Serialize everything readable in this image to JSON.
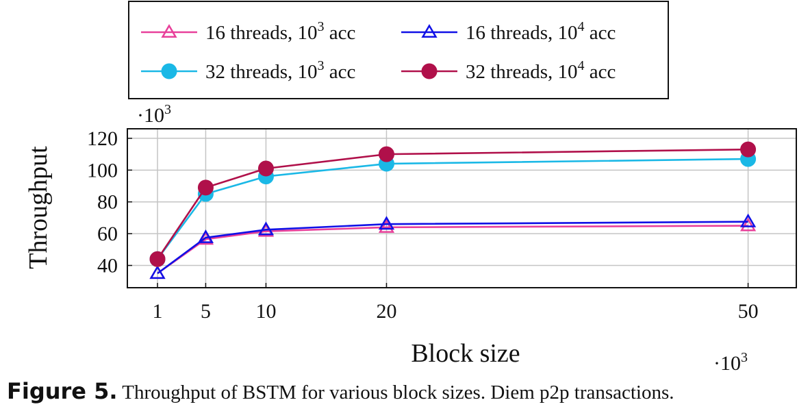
{
  "chart_data": {
    "type": "line",
    "x": [
      1,
      5,
      10,
      20,
      50
    ],
    "x_tick_labels": [
      "1",
      "5",
      "10",
      "20",
      "50"
    ],
    "xlabel": "Block size",
    "x_scale_multiplier": "·10",
    "x_scale_exponent": "3",
    "ylabel": "Throughput",
    "y_scale_multiplier": "·10",
    "y_scale_exponent": "3",
    "y_ticks": [
      40,
      60,
      80,
      100,
      120
    ],
    "ylim": [
      26,
      126
    ],
    "xlim": [
      -1.5,
      54
    ],
    "grid": true,
    "legend_position": "top",
    "series": [
      {
        "name_base": "16 threads, 10",
        "name_exp": "3",
        "name_tail": " acc",
        "values": [
          35,
          56.5,
          61.5,
          64,
          65
        ],
        "color": "#e8409a",
        "marker": "triangle-open"
      },
      {
        "name_base": "16 threads, 10",
        "name_exp": "4",
        "name_tail": " acc",
        "values": [
          35,
          57.5,
          62.5,
          66,
          67.5
        ],
        "color": "#1010e6",
        "marker": "triangle-open"
      },
      {
        "name_base": "32 threads, 10",
        "name_exp": "3",
        "name_tail": " acc",
        "values": [
          44,
          85,
          96,
          104,
          107
        ],
        "color": "#1ab8e6",
        "marker": "circle-filled"
      },
      {
        "name_base": "32 threads, 10",
        "name_exp": "4",
        "name_tail": " acc",
        "values": [
          44,
          89,
          101,
          110,
          113
        ],
        "color": "#b0104a",
        "marker": "circle-filled"
      }
    ]
  },
  "caption": {
    "label": "Figure 5.",
    "text": " Throughput of BSTM for various block sizes. Diem p2p transactions."
  }
}
